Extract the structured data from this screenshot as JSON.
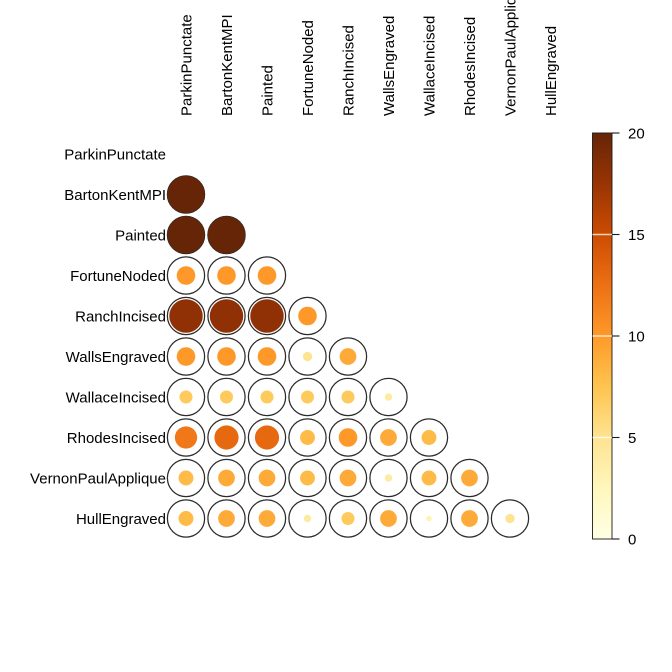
{
  "chart_data": {
    "type": "heatmap",
    "subtype": "correlation-circle-matrix",
    "title": "",
    "triangle": "lower",
    "diagonal_shown": false,
    "labels": [
      "ParkinPunctate",
      "BartonKentMPI",
      "Painted",
      "FortuneNoded",
      "RanchIncised",
      "WallsEngraved",
      "WallaceIncised",
      "RhodesIncised",
      "VernonPaulApplique",
      "HullEngraved"
    ],
    "values_lower_triangle": [
      [],
      [
        20
      ],
      [
        20,
        20
      ],
      [
        10,
        10,
        10
      ],
      [
        18,
        18,
        18,
        10
      ],
      [
        10,
        10,
        10,
        5,
        9
      ],
      [
        7,
        7,
        7,
        7,
        7,
        4
      ],
      [
        12,
        13,
        13,
        8,
        10,
        9,
        8
      ],
      [
        8,
        9,
        9,
        8,
        9,
        4,
        8,
        9
      ],
      [
        8,
        9,
        9,
        4,
        7,
        9,
        3,
        9,
        5
      ]
    ],
    "scale": {
      "min": 0,
      "max": 20,
      "legend_ticks": [
        0,
        5,
        10,
        15,
        20
      ],
      "legend_tick_labels": [
        "0",
        "5",
        "10",
        "15",
        "20"
      ]
    },
    "palette_name": "YlOrBr",
    "palette_stops": [
      "#FFFFE5",
      "#FFF7BC",
      "#FEE391",
      "#FEC44F",
      "#FE9929",
      "#EC7014",
      "#CC4C02",
      "#993404",
      "#662506"
    ],
    "ring_color": "#2b2b2b",
    "text_color": "#000000",
    "background": "#FFFFFF",
    "legend_position": "right"
  }
}
